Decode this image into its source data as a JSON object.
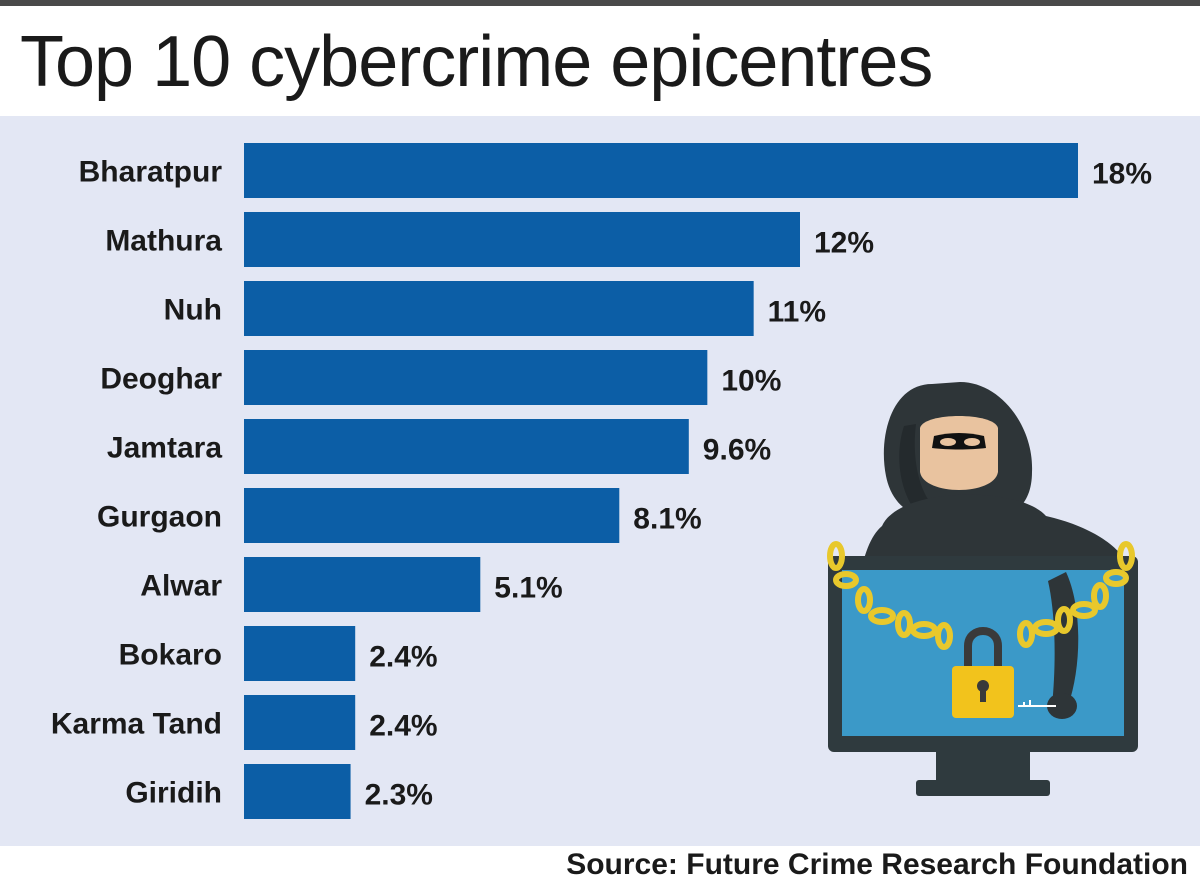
{
  "title": "Top 10 cybercrime epicentres",
  "source": "Source: Future Crime Research Foundation",
  "colors": {
    "bar": "#0c5ea6",
    "panel_background": "#e3e7f4",
    "text": "#1a1a1a"
  },
  "illustration": {
    "icon": "hacker-with-chained-locked-monitor-icon"
  },
  "chart_data": {
    "type": "bar",
    "orientation": "horizontal",
    "categories": [
      "Bharatpur",
      "Mathura",
      "Nuh",
      "Deoghar",
      "Jamtara",
      "Gurgaon",
      "Alwar",
      "Bokaro",
      "Karma Tand",
      "Giridih"
    ],
    "values": [
      18,
      12,
      11,
      10,
      9.6,
      8.1,
      5.1,
      2.4,
      2.4,
      2.3
    ],
    "value_labels": [
      "18%",
      "12%",
      "11%",
      "10%",
      "9.6%",
      "8.1%",
      "5.1%",
      "2.4%",
      "2.4%",
      "2.3%"
    ],
    "unit": "%",
    "xlim": [
      0,
      18
    ],
    "grid": false,
    "legend": "none"
  }
}
